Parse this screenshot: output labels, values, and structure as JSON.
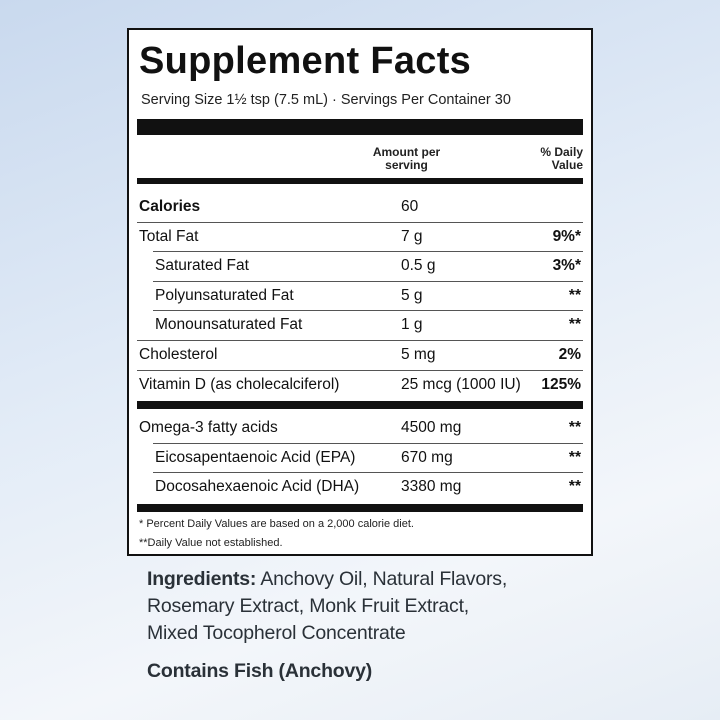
{
  "header": {
    "title": "Supplement Facts",
    "serving": "Serving Size 1½ tsp (7.5 mL) · Servings Per Container 30"
  },
  "table": {
    "columns": [
      "Amount per serving",
      "% Daily Value"
    ],
    "groups": [
      [
        {
          "name": "Calories",
          "amount": "60",
          "bold": true
        },
        {
          "name": "Total Fat",
          "amount": "7 g",
          "dv": "9%*"
        },
        {
          "name": "Saturated Fat",
          "amount": "0.5 g",
          "dv": "3%*",
          "indent": true
        },
        {
          "name": "Polyunsaturated Fat",
          "amount": "5 g",
          "dv": "**",
          "indent": true
        },
        {
          "name": "Monounsaturated Fat",
          "amount": "1 g",
          "dv": "**",
          "indent": true
        },
        {
          "name": "Cholesterol",
          "amount": "5 mg",
          "dv": "2%"
        },
        {
          "name": "Vitamin D (as cholecalciferol)",
          "amount": "25 mcg (1000 IU)",
          "dv": "125%"
        }
      ],
      [
        {
          "name": "Omega-3 fatty acids",
          "amount": "4500 mg",
          "dv": "**"
        },
        {
          "name": "Eicosapentaenoic Acid (EPA)",
          "amount": "670 mg",
          "dv": "**",
          "indent": true
        },
        {
          "name": "Docosahexaenoic Acid (DHA)",
          "amount": "3380 mg",
          "dv": "**",
          "indent": true
        }
      ]
    ]
  },
  "footnotes": [
    "* Percent Daily Values are based on a 2,000 calorie diet.",
    "**Daily Value not established."
  ],
  "ingredients": {
    "label": "Ingredients:",
    "lines": [
      "Anchovy Oil, Natural Flavors,",
      "Rosemary Extract, Monk Fruit Extract,",
      "Mixed Tocopherol Concentrate"
    ]
  },
  "allergen": "Contains Fish (Anchovy)"
}
